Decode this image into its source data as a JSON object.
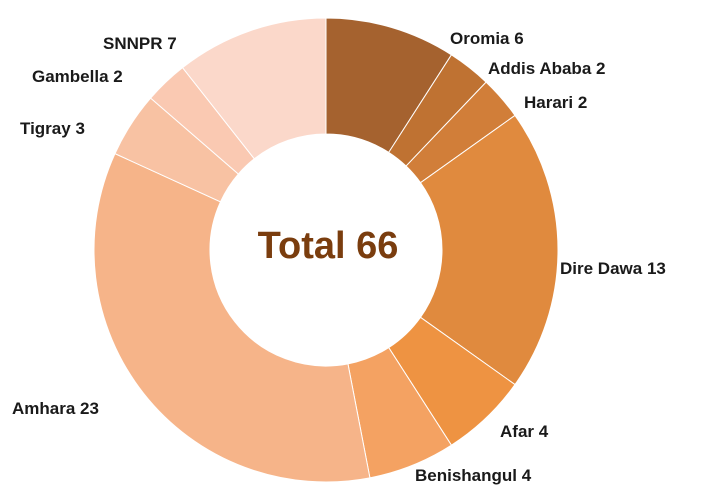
{
  "chart_data": {
    "type": "donut",
    "center_label": "Total 66",
    "categories": [
      "Oromia",
      "Addis Ababa",
      "Harari",
      "Dire Dawa",
      "Afar",
      "Benishangul",
      "Amhara",
      "Tigray",
      "Gambella",
      "SNNPR"
    ],
    "values": [
      6,
      2,
      2,
      13,
      4,
      4,
      23,
      3,
      2,
      7
    ],
    "colors": [
      "#a5622f",
      "#bf7232",
      "#d17e39",
      "#e08a3e",
      "#ee9342",
      "#f4a262",
      "#f6b489",
      "#f8c2a3",
      "#fac9b2",
      "#fbd8ca"
    ]
  }
}
